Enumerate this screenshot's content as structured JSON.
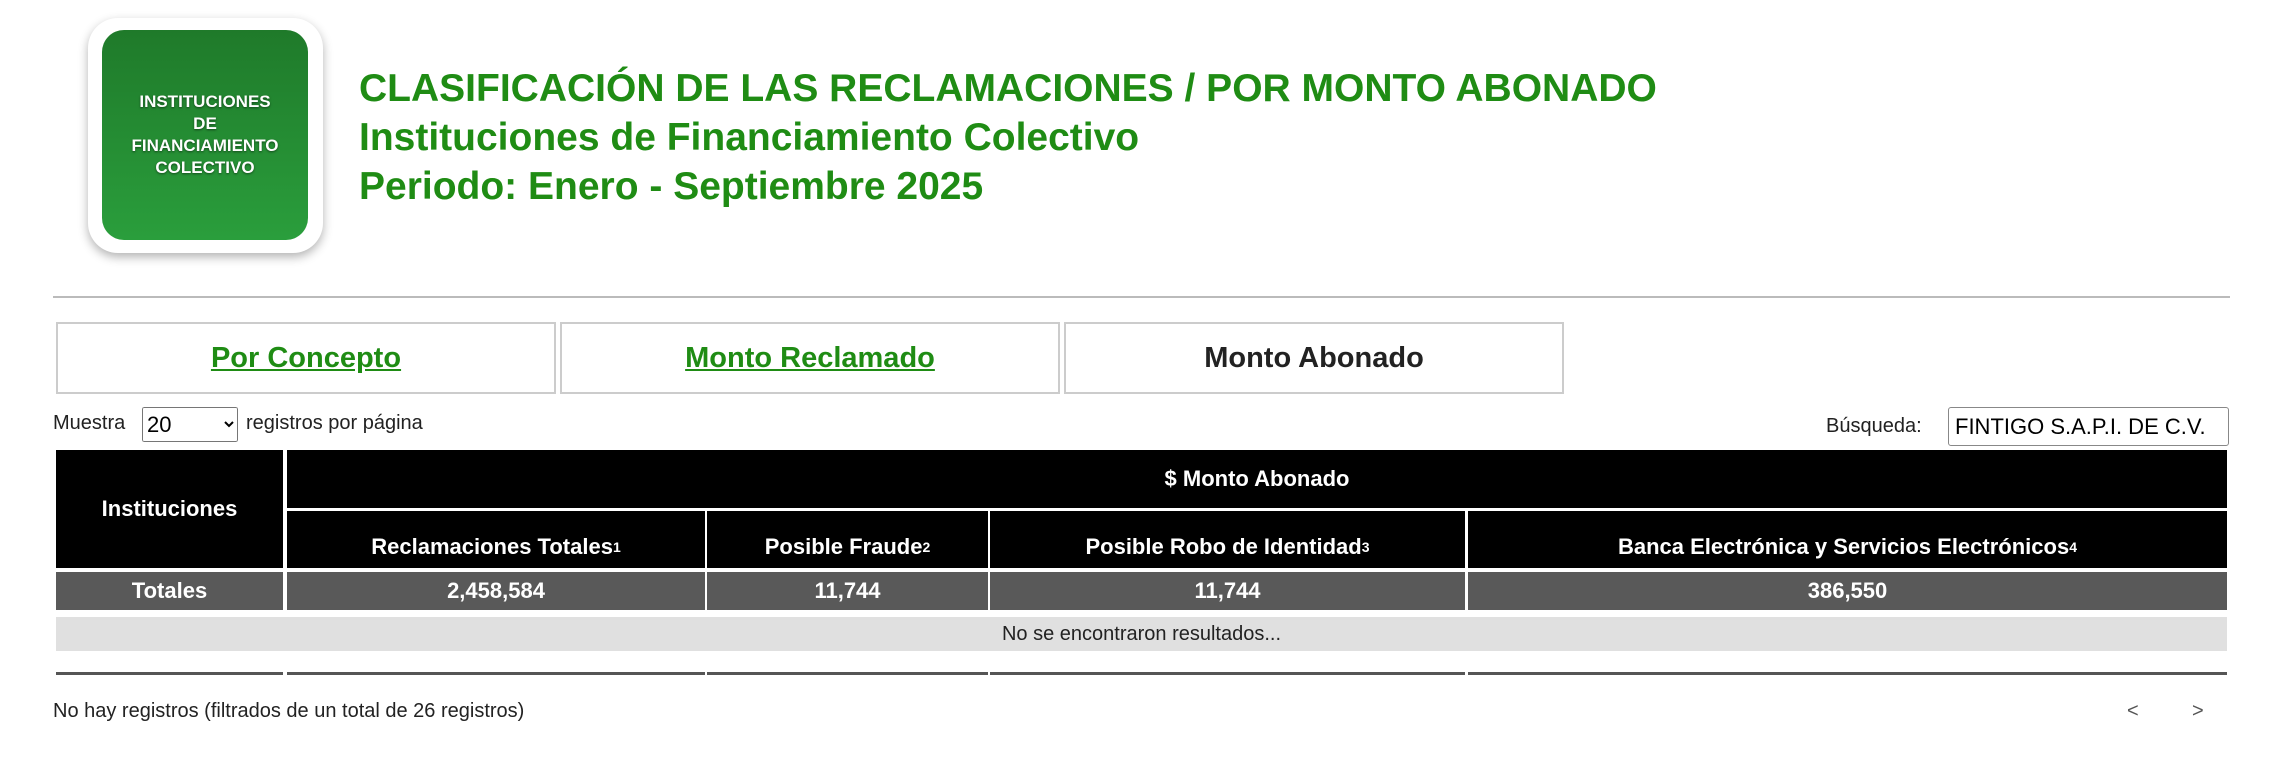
{
  "logo": {
    "text": "INSTITUCIONES DE FINANCIAMIENTO COLECTIVO",
    "lines": [
      "INSTITUCIONES",
      "DE",
      "FINANCIAMIENTO",
      "COLECTIVO"
    ]
  },
  "header": {
    "title": "CLASIFICACIÓN DE LAS RECLAMACIONES / POR MONTO ABONADO",
    "subtitle": "Instituciones de Financiamiento Colectivo",
    "period": "Periodo: Enero - Septiembre 2025"
  },
  "tabs": [
    {
      "label": "Por Concepto",
      "active": false
    },
    {
      "label": "Monto Reclamado",
      "active": false
    },
    {
      "label": "Monto Abonado",
      "active": true
    }
  ],
  "length": {
    "prefix": "Muestra",
    "value": "20",
    "suffix": "registros por página"
  },
  "search": {
    "label": "Búsqueda:",
    "value": "FINTIGO S.A.P.I. DE C.V."
  },
  "table": {
    "col0": "Instituciones",
    "group": "$ Monto Abonado",
    "columns": [
      {
        "label": "Reclamaciones Totales",
        "sup": "1"
      },
      {
        "label": "Posible Fraude",
        "sup": "2"
      },
      {
        "label": "Posible Robo de Identidad",
        "sup": "3"
      },
      {
        "label": "Banca Electrónica y Servicios Electrónicos",
        "sup": "4"
      }
    ],
    "totals": {
      "label": "Totales",
      "values": [
        "2,458,584",
        "11,744",
        "11,744",
        "386,550"
      ]
    },
    "empty": "No se encontraron resultados..."
  },
  "footer": {
    "info": "No hay registros (filtrados de un total de 26 registros)",
    "prev": "<",
    "next": ">"
  }
}
